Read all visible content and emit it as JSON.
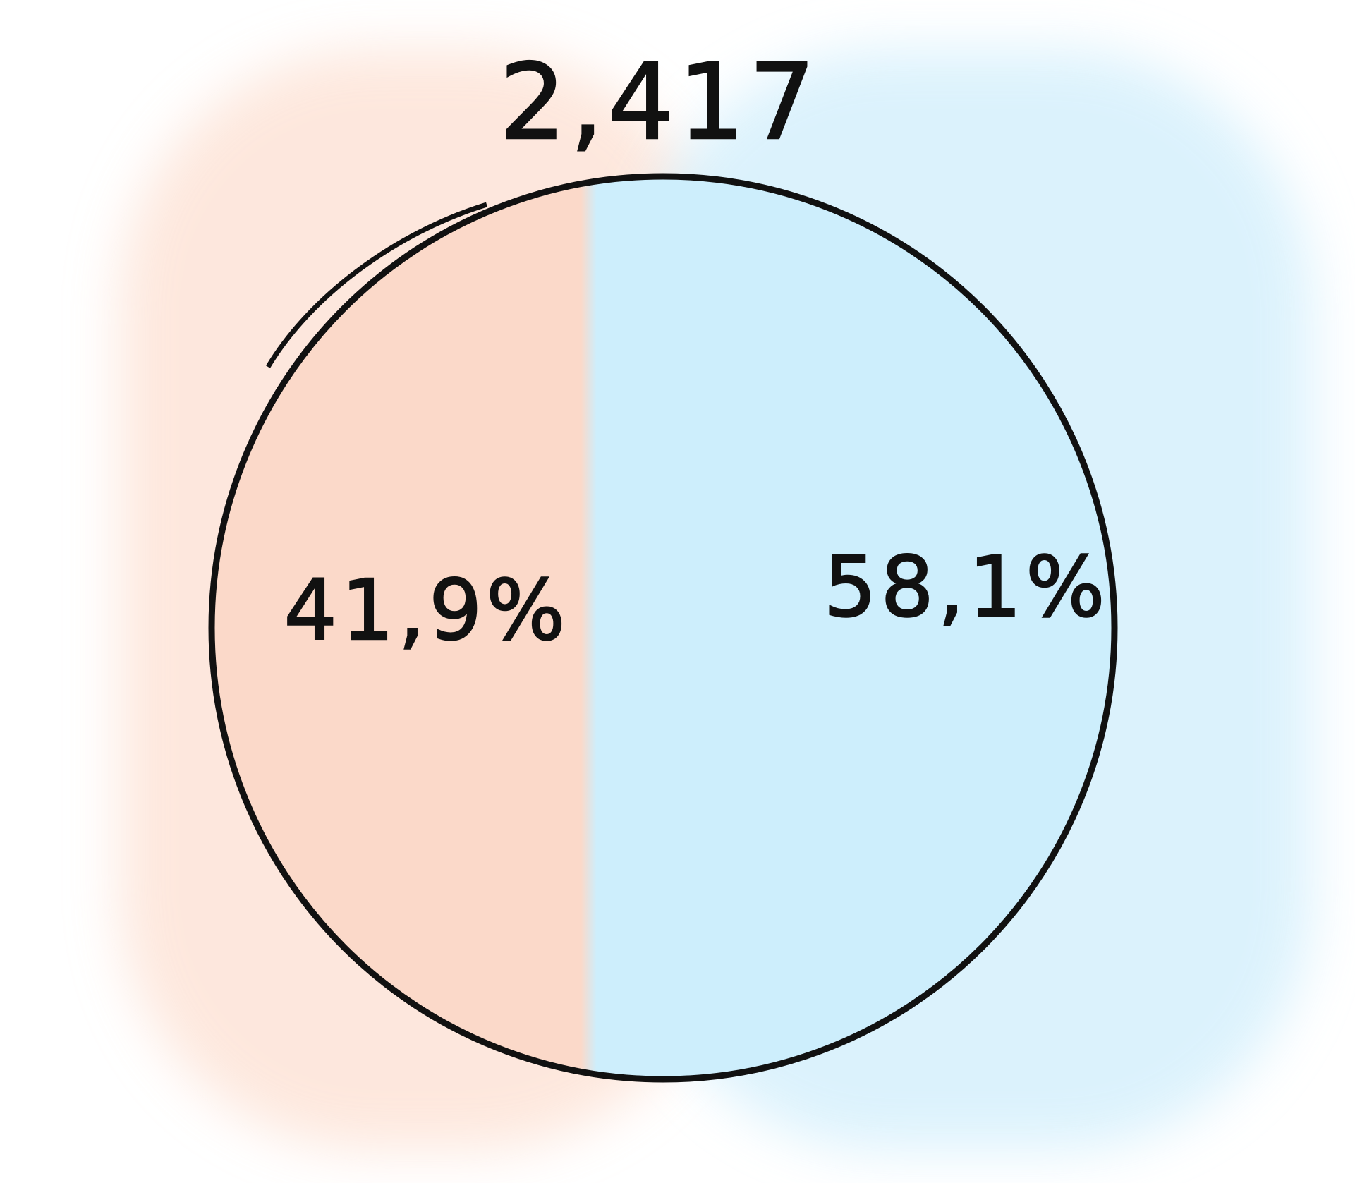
{
  "chart_data": {
    "type": "pie",
    "total_label": "2,417",
    "slices": [
      {
        "label": "41,9%",
        "value": 41.9,
        "color": "#fbd9c9"
      },
      {
        "label": "58,1%",
        "value": 58.1,
        "color": "#cdeefc"
      }
    ],
    "outline_color": "#111111"
  }
}
